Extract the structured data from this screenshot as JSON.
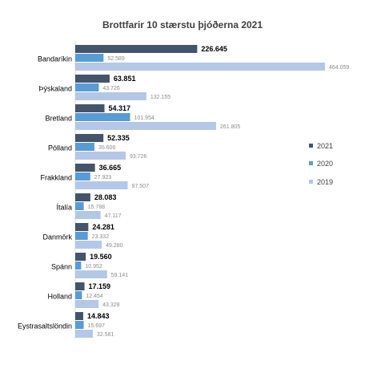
{
  "chart_data": {
    "type": "bar",
    "orientation": "horizontal",
    "title": "Brottfarir 10 stærstu þjóðerna 2021",
    "xlabel": "",
    "ylabel": "",
    "xlim": [
      0,
      470000
    ],
    "grid": false,
    "legend_position": "right",
    "categories": [
      "Bandaríkin",
      "Þýskaland",
      "Bretland",
      "Pólland",
      "Frakkland",
      "Ítalía",
      "Danmörk",
      "Spánn",
      "Holland",
      "Eystrasaltslöndin"
    ],
    "series": [
      {
        "name": "2021",
        "color": "#44546a",
        "values": [
          226645,
          63851,
          54317,
          52335,
          36665,
          28083,
          24281,
          19560,
          17159,
          14843
        ],
        "labels": [
          "226.645",
          "63.851",
          "54.317",
          "52.335",
          "36.665",
          "28.083",
          "24.281",
          "19.560",
          "17.159",
          "14.843"
        ]
      },
      {
        "name": "2020",
        "color": "#5b9bd5",
        "values": [
          52589,
          43726,
          101954,
          35606,
          27923,
          15788,
          23332,
          10952,
          12454,
          15697
        ],
        "labels": [
          "52.589",
          "43.726",
          "101.954",
          "35.606",
          "27.923",
          "15.788",
          "23.332",
          "10.952",
          "12.454",
          "15.697"
        ]
      },
      {
        "name": "2019",
        "color": "#b4c7e7",
        "values": [
          464059,
          132155,
          261805,
          93726,
          97507,
          47117,
          49280,
          59141,
          43328,
          32581
        ],
        "labels": [
          "464.059",
          "132.155",
          "261.805",
          "93.726",
          "97.507",
          "47.117",
          "49.280",
          "59.141",
          "43.328",
          "32.581"
        ]
      }
    ]
  }
}
